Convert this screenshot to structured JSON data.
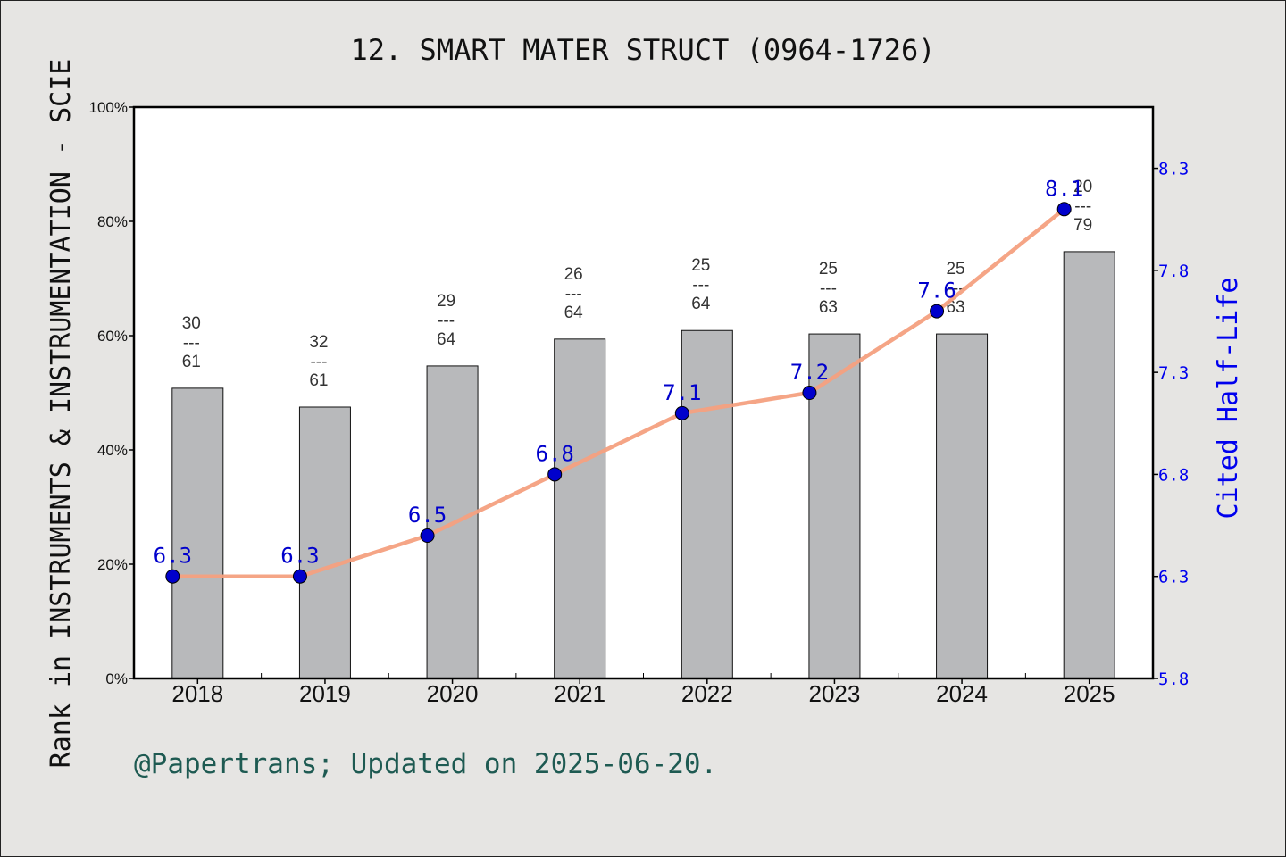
{
  "chart_data": {
    "type": "bar",
    "title": "12. SMART MATER STRUCT (0964-1726)",
    "ylabel": "Rank in INSTRUMENTS & INSTRUMENTATION - SCIE",
    "y2label": "Cited Half-Life",
    "ylim": [
      0,
      100
    ],
    "y2lim": [
      5.8,
      8.6
    ],
    "yticks": [
      "0%",
      "20%",
      "40%",
      "60%",
      "80%",
      "100%"
    ],
    "y2ticks": [
      "5.8",
      "6.3",
      "6.8",
      "7.3",
      "7.8",
      "8.3"
    ],
    "categories": [
      "2018",
      "2019",
      "2020",
      "2021",
      "2022",
      "2023",
      "2024",
      "2025"
    ],
    "series": [
      {
        "kind": "bar",
        "values": [
          50.8,
          47.5,
          54.7,
          59.4,
          60.9,
          60.3,
          60.3,
          74.7
        ],
        "rank": [
          "30",
          "32",
          "29",
          "26",
          "25",
          "25",
          "25",
          "20"
        ],
        "total": [
          "61",
          "61",
          "64",
          "64",
          "64",
          "63",
          "63",
          "79"
        ],
        "separator": "---"
      },
      {
        "kind": "line",
        "values": [
          6.3,
          6.3,
          6.5,
          6.8,
          7.1,
          7.2,
          7.6,
          8.1
        ],
        "labels": [
          "6.3",
          "6.3",
          "6.5",
          "6.8",
          "7.1",
          "7.2",
          "7.6",
          "8.1"
        ]
      }
    ],
    "legend": "none",
    "grid": false
  },
  "colors": {
    "bar": "#b8b9bb",
    "line": "#f4a080",
    "marker": "#0000cc",
    "right_axis": "#0000ee",
    "footer": "#1e5a52",
    "background": "#e6e5e3",
    "plot_background": "#ffffff"
  },
  "footer": "@Papertrans; Updated on 2025-06-20."
}
